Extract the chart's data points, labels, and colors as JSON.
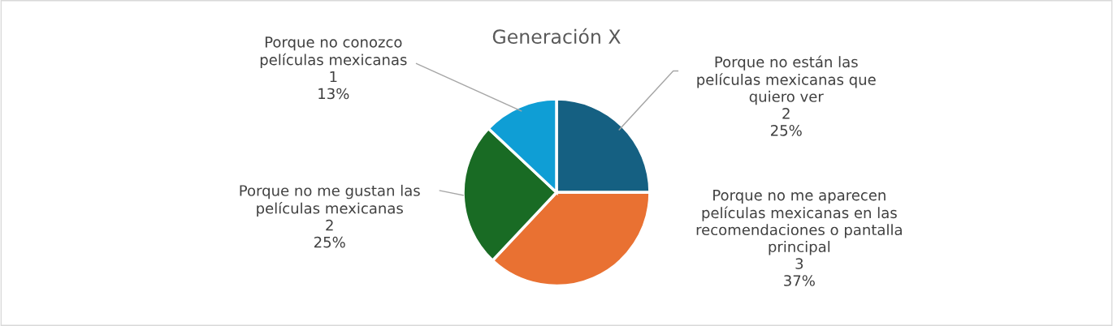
{
  "chart_data": {
    "type": "pie",
    "title": "Generación X",
    "categories": [
      "Porque no están las películas mexicanas que quiero ver",
      "Porque no me aparecen películas mexicanas en las recomendaciones o pantalla principal",
      "Porque no me gustan las películas mexicanas",
      "Porque no conozco películas mexicanas"
    ],
    "values": [
      25,
      37,
      25,
      13
    ],
    "value_labels": [
      "2\n25%",
      "3\n37%",
      "2\n25%",
      "1\n13%"
    ],
    "colors": [
      "#156082",
      "#e97132",
      "#196b24",
      "#0f9ed5"
    ]
  }
}
